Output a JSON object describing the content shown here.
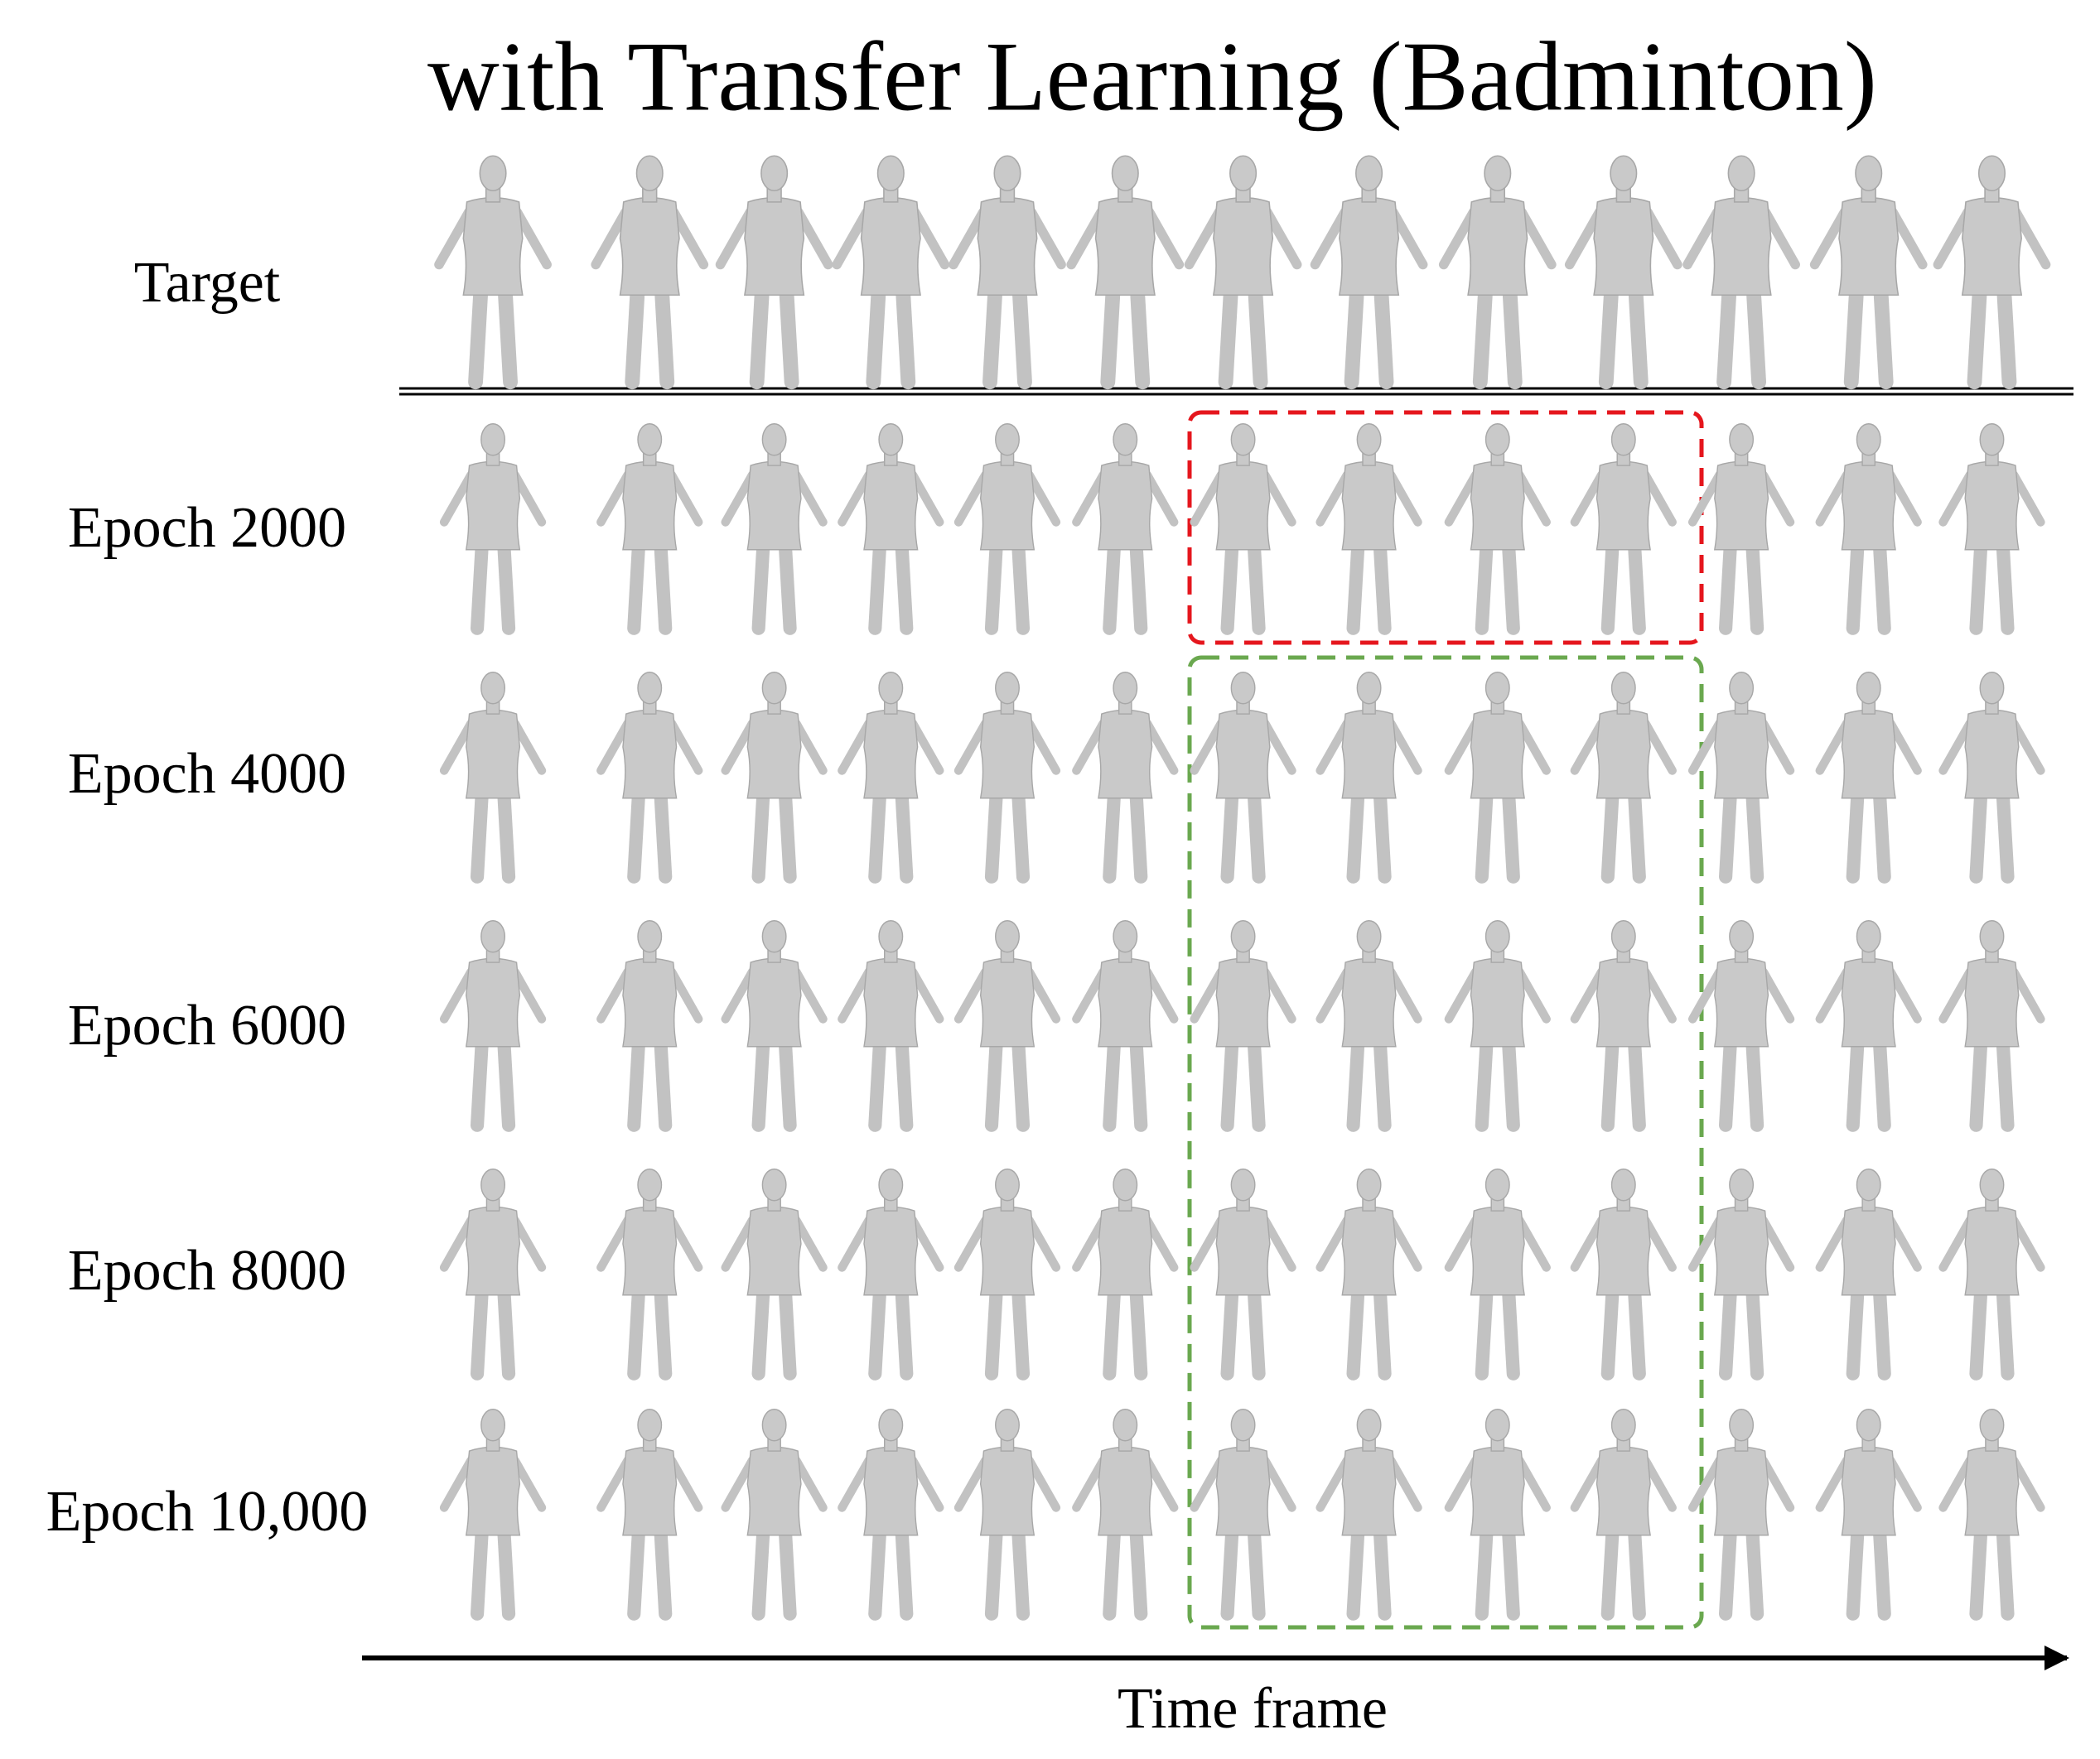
{
  "title": "with Transfer Learning  (Badminton)",
  "rows": [
    "Target",
    "Epoch 2000",
    "Epoch 4000",
    "Epoch 6000",
    "Epoch 8000",
    "Epoch 10,000"
  ],
  "x_axis_label": "Time frame"
}
